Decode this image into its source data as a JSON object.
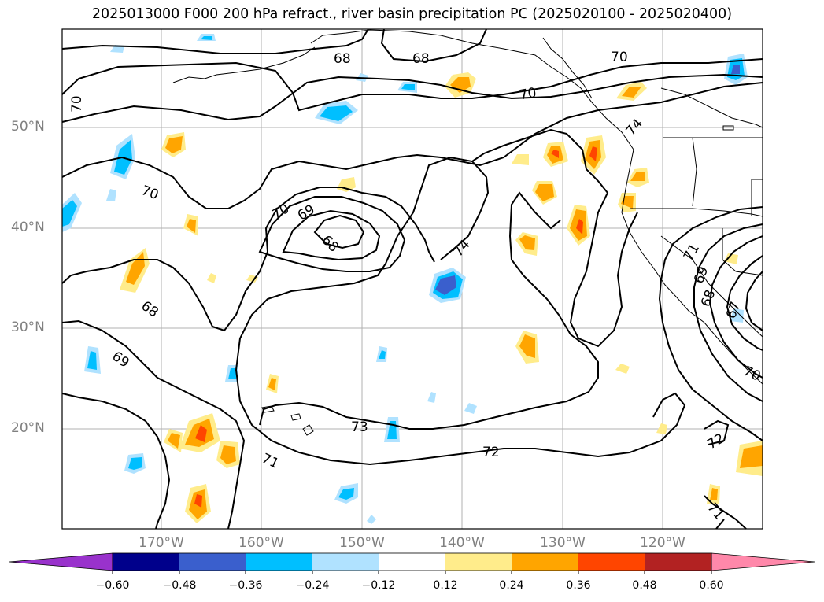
{
  "title": "2025013000 F000 200 hPa refract., river basin precipitation PC (2025020100 - 2025020400)",
  "map": {
    "lon_labels": [
      "170°W",
      "160°W",
      "150°W",
      "140°W",
      "130°W",
      "120°W"
    ],
    "lat_labels": [
      "50°N",
      "40°N",
      "30°N",
      "20°N"
    ],
    "contour_labels": [
      "68",
      "68",
      "70",
      "70",
      "70",
      "70",
      "74",
      "70",
      "69",
      "68",
      "74",
      "71",
      "69",
      "68",
      "67",
      "68",
      "69",
      "73",
      "72",
      "71",
      "71",
      "72",
      "70"
    ],
    "colors": {
      "contour": "#000000",
      "grid": "#b0b0b0",
      "land_border": "#000000"
    }
  },
  "colorbar": {
    "ticks": [
      "−0.60",
      "−0.48",
      "−0.36",
      "−0.24",
      "−0.12",
      "0.12",
      "0.24",
      "0.36",
      "0.48",
      "0.60"
    ],
    "colors": [
      "#9932cc",
      "#00008b",
      "#3a5fcd",
      "#00bfff",
      "#b0e2ff",
      "#ffffff",
      "#ffec8b",
      "#ffa500",
      "#ff4500",
      "#b22222",
      "#ff88aa"
    ]
  }
}
